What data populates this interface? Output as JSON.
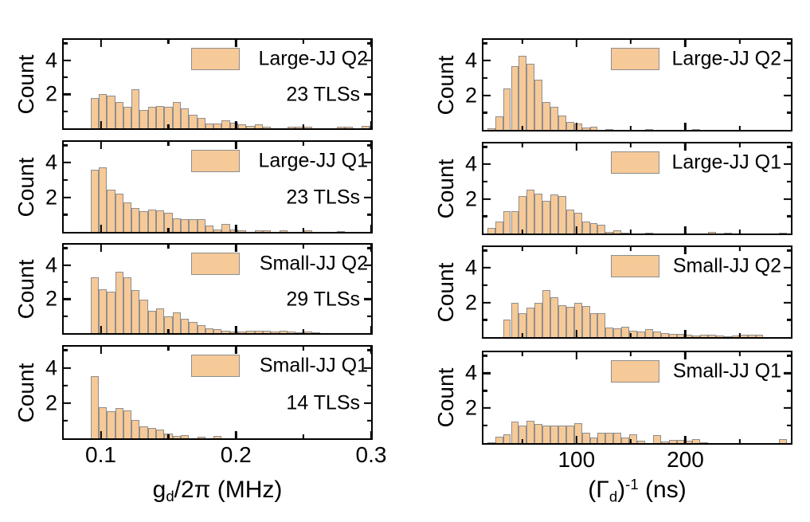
{
  "chart_data": {
    "type": "bar",
    "subtype": "histogram-grid",
    "ylabel": "Count",
    "ylim": [
      0,
      5.2
    ],
    "yticks_major": [
      {
        "value": 2,
        "label": "2"
      },
      {
        "value": 4,
        "label": "4"
      }
    ],
    "yticks_minor": [
      1,
      3,
      5
    ],
    "grid": "off",
    "legend_position": "upper-right-inside",
    "colors": {
      "bar_fill": "#F6C998",
      "bar_edge": "#8E8E8E",
      "axis": "#000000",
      "text": "#000000",
      "background": "#FFFFFF"
    },
    "columns": [
      {
        "id": "left",
        "xlabel_plain": "g_d/2pi (MHz)",
        "xlabel_parts": [
          {
            "text": "g"
          },
          {
            "text": "d",
            "style": "sub"
          },
          {
            "text": "/2π (MHz)"
          }
        ],
        "xlim": [
          0.0726,
          0.3
        ],
        "xticks_major": [
          {
            "value": 0.1,
            "label": "0.1"
          },
          {
            "value": 0.2,
            "label": "0.2"
          },
          {
            "value": 0.3,
            "label": "0.3"
          }
        ],
        "xticks_minor": [
          0.15,
          0.25
        ],
        "bin_start": 0.0924,
        "bin_width": 0.00607,
        "panels": [
          {
            "legend": "Large-JJ Q2",
            "annotation": "23 TLSs",
            "heights": [
              1.8,
              2.0,
              1.9,
              1.55,
              1.25,
              2.3,
              1.1,
              1.25,
              1.3,
              1.25,
              1.55,
              1.15,
              0.8,
              0.6,
              0.3,
              0.3,
              0.45,
              0.35,
              0.25,
              0.15,
              0.25,
              0.1,
              0,
              0,
              0.1,
              0.1,
              0.08,
              0,
              0,
              0,
              0.08,
              0.08,
              0,
              0.12,
              0.12,
              0.1
            ]
          },
          {
            "legend": "Large-JJ Q1",
            "annotation": "23 TLSs",
            "heights": [
              3.6,
              3.75,
              2.45,
              2.2,
              1.7,
              1.4,
              1.2,
              1.3,
              1.25,
              1.1,
              0.8,
              0.75,
              0.75,
              0.75,
              0.35,
              0.15,
              0.45,
              0.15,
              0.1,
              0,
              0.08,
              0.08,
              0,
              0.1,
              0,
              0,
              0.08,
              0,
              0,
              0,
              0.06,
              0,
              0,
              0,
              0,
              0.12
            ]
          },
          {
            "legend": "Small-JJ Q2",
            "annotation": "29 TLSs",
            "heights": [
              3.3,
              2.6,
              2.45,
              3.6,
              3.3,
              2.55,
              1.95,
              1.3,
              1.45,
              1.0,
              1.2,
              0.85,
              0.65,
              0.45,
              0.3,
              0.22,
              0.12,
              0.1,
              0.08,
              0.15,
              0.15,
              0.15,
              0.08,
              0.12,
              0.1,
              0.06,
              0.1,
              0.05
            ]
          },
          {
            "legend": "Small-JJ Q1",
            "annotation": "14 TLSs",
            "heights": [
              3.55,
              1.75,
              1.55,
              1.7,
              1.6,
              1.05,
              0.7,
              0.6,
              0.5,
              0.25,
              0.12,
              0.2,
              0,
              0.1,
              0,
              0.12
            ]
          }
        ]
      },
      {
        "id": "right",
        "xlabel_plain": "(Gamma_d)^-1 (ns)",
        "xlabel_parts": [
          {
            "text": "(Γ"
          },
          {
            "text": "d",
            "style": "sub"
          },
          {
            "text": ")"
          },
          {
            "text": "-1",
            "style": "sup"
          },
          {
            "text": " (ns)"
          }
        ],
        "xlim": [
          14.5,
          297
        ],
        "xticks_major": [
          {
            "value": 100,
            "label": "100"
          },
          {
            "value": 200,
            "label": "200"
          }
        ],
        "xticks_minor": [
          50,
          150,
          250
        ],
        "bin_start": 18,
        "bin_width": 7.25,
        "panels": [
          {
            "legend": "Large-JJ Q2",
            "annotation": null,
            "heights": [
              0.1,
              0.8,
              2.4,
              3.7,
              4.3,
              3.8,
              2.9,
              1.6,
              1.35,
              0.85,
              0.45,
              0.35,
              0.15,
              0.2,
              0,
              0.05,
              0,
              0,
              0,
              0,
              0.05,
              0,
              0,
              0,
              0,
              0,
              0.05
            ]
          },
          {
            "legend": "Large-JJ Q1",
            "annotation": null,
            "heights": [
              0.3,
              0.7,
              1.3,
              1.3,
              2.15,
              2.55,
              2.3,
              1.9,
              2.25,
              2.15,
              1.4,
              1.2,
              0.7,
              0.6,
              0.5,
              0.1,
              0.2,
              0.05,
              0,
              0,
              0.05,
              0,
              0,
              0,
              0,
              0,
              0,
              0,
              0.08,
              0,
              0.05,
              0,
              0,
              0,
              0,
              0,
              0,
              0.05
            ]
          },
          {
            "legend": "Small-JJ Q2",
            "annotation": null,
            "heights": [
              0,
              0,
              1.0,
              2.0,
              1.4,
              1.7,
              2.0,
              2.7,
              2.3,
              1.85,
              1.75,
              2.0,
              1.8,
              1.4,
              1.4,
              0.55,
              0.5,
              0.6,
              0.35,
              0.3,
              0.45,
              0.3,
              0.25,
              0.2,
              0.2,
              0.15,
              0.1,
              0.15,
              0.15,
              0.1,
              0.05,
              0.1,
              0.12,
              0.12,
              0.12
            ]
          },
          {
            "legend": "Small-JJ Q1",
            "annotation": null,
            "heights": [
              0.03,
              0.35,
              0.5,
              1.25,
              1.0,
              1.3,
              1.1,
              1.0,
              1.0,
              1.0,
              1.0,
              1.15,
              0.6,
              0.3,
              0.6,
              0.6,
              0.6,
              0.3,
              0.5,
              0.15,
              0,
              0.45,
              0.1,
              0.2,
              0.2,
              0.15,
              0.25,
              0.05,
              0,
              0,
              0,
              0,
              0,
              0,
              0,
              0,
              0,
              0.25
            ]
          }
        ]
      }
    ]
  }
}
